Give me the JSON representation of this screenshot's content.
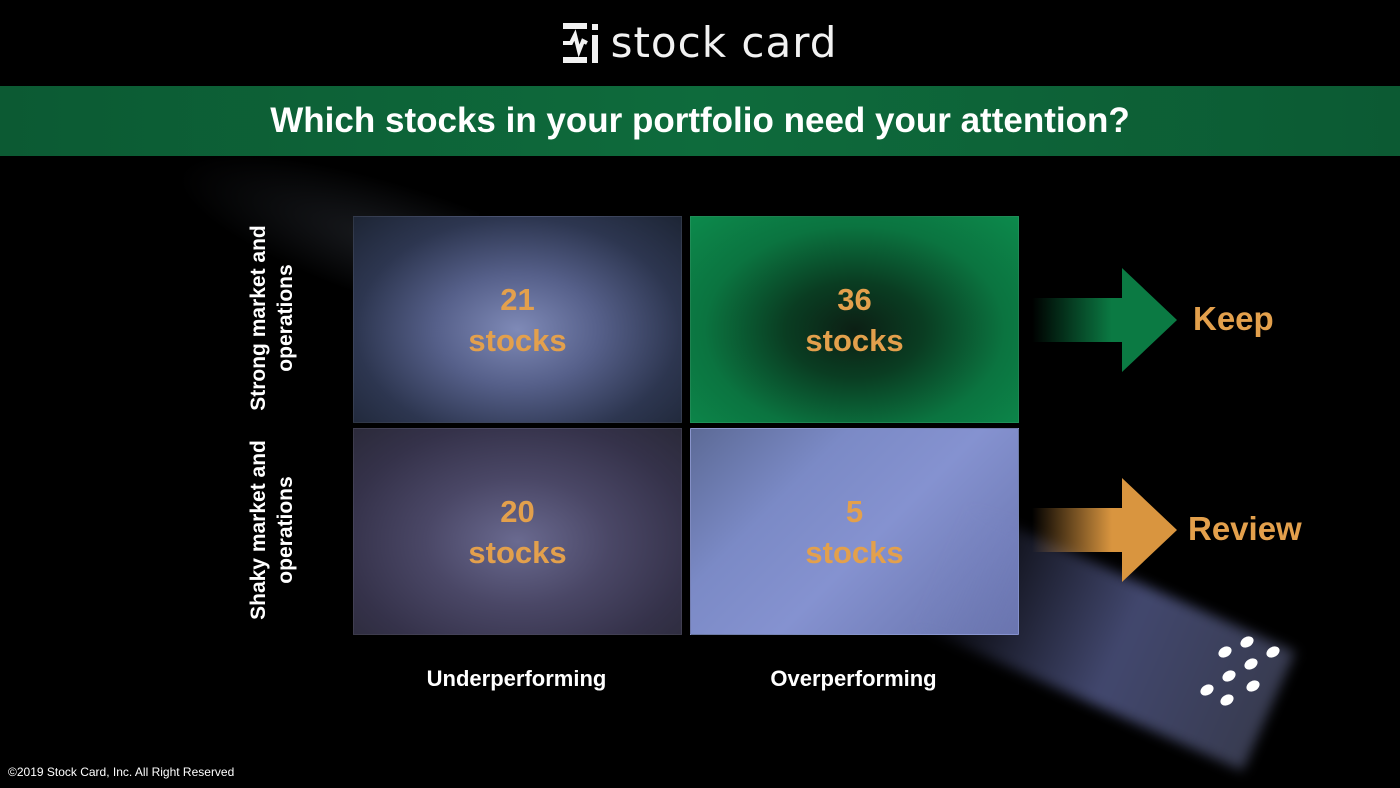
{
  "logo": {
    "text": "stock card"
  },
  "banner": {
    "title": "Which stocks in your portfolio need your attention?"
  },
  "matrix": {
    "rows": [
      "Strong market and operations",
      "Shaky market and operations"
    ],
    "columns": [
      "Underperforming",
      "Overperforming"
    ],
    "cells": [
      {
        "count": "21",
        "unit": "stocks"
      },
      {
        "count": "36",
        "unit": "stocks"
      },
      {
        "count": "20",
        "unit": "stocks"
      },
      {
        "count": "5",
        "unit": "stocks"
      }
    ]
  },
  "actions": {
    "keep": "Keep",
    "review": "Review"
  },
  "colors": {
    "banner": "#0e6b3c",
    "accent": "#e3a04c",
    "keep_arrow": "#0b7a43",
    "review_arrow": "#d9953f"
  },
  "footer": {
    "copyright": "©2019 Stock Card, Inc. All Right Reserved"
  }
}
